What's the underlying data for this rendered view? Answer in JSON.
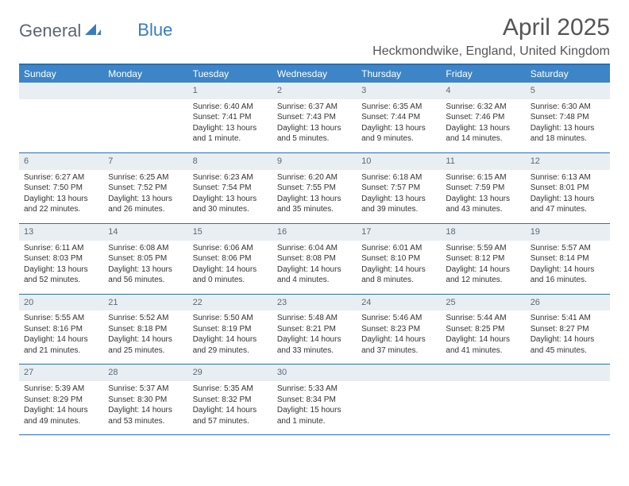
{
  "logo": {
    "text1": "General",
    "text2": "Blue"
  },
  "title": "April 2025",
  "location": "Heckmondwike, England, United Kingdom",
  "colors": {
    "header_bar": "#3d85c6",
    "border": "#2a6fb0",
    "daynum_bg": "#e9eef2",
    "logo_gray": "#5b6770",
    "logo_blue": "#3a7bbf"
  },
  "days_of_week": [
    "Sunday",
    "Monday",
    "Tuesday",
    "Wednesday",
    "Thursday",
    "Friday",
    "Saturday"
  ],
  "weeks": [
    [
      {
        "num": "",
        "sunrise": "",
        "sunset": "",
        "daylight": ""
      },
      {
        "num": "",
        "sunrise": "",
        "sunset": "",
        "daylight": ""
      },
      {
        "num": "1",
        "sunrise": "Sunrise: 6:40 AM",
        "sunset": "Sunset: 7:41 PM",
        "daylight": "Daylight: 13 hours and 1 minute."
      },
      {
        "num": "2",
        "sunrise": "Sunrise: 6:37 AM",
        "sunset": "Sunset: 7:43 PM",
        "daylight": "Daylight: 13 hours and 5 minutes."
      },
      {
        "num": "3",
        "sunrise": "Sunrise: 6:35 AM",
        "sunset": "Sunset: 7:44 PM",
        "daylight": "Daylight: 13 hours and 9 minutes."
      },
      {
        "num": "4",
        "sunrise": "Sunrise: 6:32 AM",
        "sunset": "Sunset: 7:46 PM",
        "daylight": "Daylight: 13 hours and 14 minutes."
      },
      {
        "num": "5",
        "sunrise": "Sunrise: 6:30 AM",
        "sunset": "Sunset: 7:48 PM",
        "daylight": "Daylight: 13 hours and 18 minutes."
      }
    ],
    [
      {
        "num": "6",
        "sunrise": "Sunrise: 6:27 AM",
        "sunset": "Sunset: 7:50 PM",
        "daylight": "Daylight: 13 hours and 22 minutes."
      },
      {
        "num": "7",
        "sunrise": "Sunrise: 6:25 AM",
        "sunset": "Sunset: 7:52 PM",
        "daylight": "Daylight: 13 hours and 26 minutes."
      },
      {
        "num": "8",
        "sunrise": "Sunrise: 6:23 AM",
        "sunset": "Sunset: 7:54 PM",
        "daylight": "Daylight: 13 hours and 30 minutes."
      },
      {
        "num": "9",
        "sunrise": "Sunrise: 6:20 AM",
        "sunset": "Sunset: 7:55 PM",
        "daylight": "Daylight: 13 hours and 35 minutes."
      },
      {
        "num": "10",
        "sunrise": "Sunrise: 6:18 AM",
        "sunset": "Sunset: 7:57 PM",
        "daylight": "Daylight: 13 hours and 39 minutes."
      },
      {
        "num": "11",
        "sunrise": "Sunrise: 6:15 AM",
        "sunset": "Sunset: 7:59 PM",
        "daylight": "Daylight: 13 hours and 43 minutes."
      },
      {
        "num": "12",
        "sunrise": "Sunrise: 6:13 AM",
        "sunset": "Sunset: 8:01 PM",
        "daylight": "Daylight: 13 hours and 47 minutes."
      }
    ],
    [
      {
        "num": "13",
        "sunrise": "Sunrise: 6:11 AM",
        "sunset": "Sunset: 8:03 PM",
        "daylight": "Daylight: 13 hours and 52 minutes."
      },
      {
        "num": "14",
        "sunrise": "Sunrise: 6:08 AM",
        "sunset": "Sunset: 8:05 PM",
        "daylight": "Daylight: 13 hours and 56 minutes."
      },
      {
        "num": "15",
        "sunrise": "Sunrise: 6:06 AM",
        "sunset": "Sunset: 8:06 PM",
        "daylight": "Daylight: 14 hours and 0 minutes."
      },
      {
        "num": "16",
        "sunrise": "Sunrise: 6:04 AM",
        "sunset": "Sunset: 8:08 PM",
        "daylight": "Daylight: 14 hours and 4 minutes."
      },
      {
        "num": "17",
        "sunrise": "Sunrise: 6:01 AM",
        "sunset": "Sunset: 8:10 PM",
        "daylight": "Daylight: 14 hours and 8 minutes."
      },
      {
        "num": "18",
        "sunrise": "Sunrise: 5:59 AM",
        "sunset": "Sunset: 8:12 PM",
        "daylight": "Daylight: 14 hours and 12 minutes."
      },
      {
        "num": "19",
        "sunrise": "Sunrise: 5:57 AM",
        "sunset": "Sunset: 8:14 PM",
        "daylight": "Daylight: 14 hours and 16 minutes."
      }
    ],
    [
      {
        "num": "20",
        "sunrise": "Sunrise: 5:55 AM",
        "sunset": "Sunset: 8:16 PM",
        "daylight": "Daylight: 14 hours and 21 minutes."
      },
      {
        "num": "21",
        "sunrise": "Sunrise: 5:52 AM",
        "sunset": "Sunset: 8:18 PM",
        "daylight": "Daylight: 14 hours and 25 minutes."
      },
      {
        "num": "22",
        "sunrise": "Sunrise: 5:50 AM",
        "sunset": "Sunset: 8:19 PM",
        "daylight": "Daylight: 14 hours and 29 minutes."
      },
      {
        "num": "23",
        "sunrise": "Sunrise: 5:48 AM",
        "sunset": "Sunset: 8:21 PM",
        "daylight": "Daylight: 14 hours and 33 minutes."
      },
      {
        "num": "24",
        "sunrise": "Sunrise: 5:46 AM",
        "sunset": "Sunset: 8:23 PM",
        "daylight": "Daylight: 14 hours and 37 minutes."
      },
      {
        "num": "25",
        "sunrise": "Sunrise: 5:44 AM",
        "sunset": "Sunset: 8:25 PM",
        "daylight": "Daylight: 14 hours and 41 minutes."
      },
      {
        "num": "26",
        "sunrise": "Sunrise: 5:41 AM",
        "sunset": "Sunset: 8:27 PM",
        "daylight": "Daylight: 14 hours and 45 minutes."
      }
    ],
    [
      {
        "num": "27",
        "sunrise": "Sunrise: 5:39 AM",
        "sunset": "Sunset: 8:29 PM",
        "daylight": "Daylight: 14 hours and 49 minutes."
      },
      {
        "num": "28",
        "sunrise": "Sunrise: 5:37 AM",
        "sunset": "Sunset: 8:30 PM",
        "daylight": "Daylight: 14 hours and 53 minutes."
      },
      {
        "num": "29",
        "sunrise": "Sunrise: 5:35 AM",
        "sunset": "Sunset: 8:32 PM",
        "daylight": "Daylight: 14 hours and 57 minutes."
      },
      {
        "num": "30",
        "sunrise": "Sunrise: 5:33 AM",
        "sunset": "Sunset: 8:34 PM",
        "daylight": "Daylight: 15 hours and 1 minute."
      },
      {
        "num": "",
        "sunrise": "",
        "sunset": "",
        "daylight": ""
      },
      {
        "num": "",
        "sunrise": "",
        "sunset": "",
        "daylight": ""
      },
      {
        "num": "",
        "sunrise": "",
        "sunset": "",
        "daylight": ""
      }
    ]
  ]
}
